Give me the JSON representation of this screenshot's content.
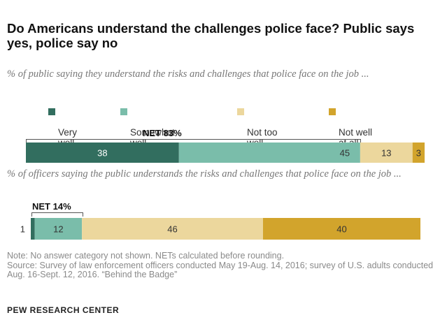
{
  "title": "Do Americans understand the challenges police face? Public says yes, police say no",
  "subtitle_1": "% of public saying they understand the risks and challenges that police face on the job ...",
  "subtitle_2": "% of officers saying the public understands the risks and challenges that police face on the job ...",
  "legend": [
    {
      "label": "Very\nwell",
      "color": "#326e5f"
    },
    {
      "label": "Somewhat\nwell",
      "color": "#7abdaa"
    },
    {
      "label": "Not too\nwell",
      "color": "#ecd79d"
    },
    {
      "label": "Not well\nat all",
      "color": "#d2a42c"
    }
  ],
  "net_public": "NET 83%",
  "net_officers": "NET 14%",
  "note": "Note: No answer category not shown. NETs calculated before rounding.",
  "source": "Source: Survey of law enforcement officers conducted May 19-Aug. 14, 2016; survey of U.S. adults conducted Aug. 16-Sept. 12, 2016. “Behind the Badge”",
  "brand": "PEW RESEARCH CENTER",
  "chart_data": {
    "type": "bar",
    "orientation": "horizontal",
    "stacked": true,
    "categories": [
      "Very well",
      "Somewhat well",
      "Not too well",
      "Not well at all"
    ],
    "series": [
      {
        "values": [
          38,
          45,
          13,
          3
        ]
      },
      {
        "values": [
          1,
          12,
          46,
          40
        ]
      }
    ],
    "xlim": [
      0,
      100
    ]
  }
}
